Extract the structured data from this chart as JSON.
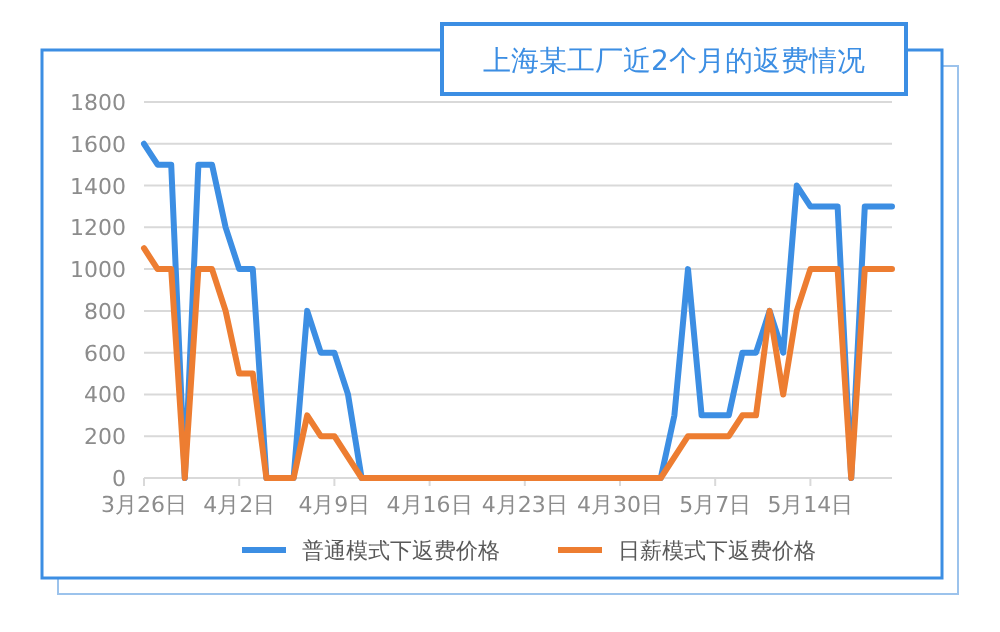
{
  "chart_data": {
    "type": "line",
    "title": "上海某工厂近2个月的返费情况",
    "x": [
      "--03-26",
      "--03-27",
      "--03-28",
      "--03-29",
      "--03-30",
      "--03-31",
      "--04-01",
      "--04-02",
      "--04-03",
      "--04-04",
      "--04-05",
      "--04-06",
      "--04-07",
      "--04-08",
      "--04-09",
      "--04-10",
      "--04-11",
      "--04-12",
      "--04-13",
      "--04-14",
      "--04-15",
      "--04-16",
      "--04-17",
      "--04-18",
      "--04-19",
      "--04-20",
      "--04-21",
      "--04-22",
      "--04-23",
      "--04-24",
      "--04-25",
      "--04-26",
      "--04-27",
      "--04-28",
      "--04-29",
      "--04-30",
      "--05-01",
      "--05-02",
      "--05-03",
      "--05-04",
      "--05-05",
      "--05-06",
      "--05-07",
      "--05-08",
      "--05-09",
      "--05-10",
      "--05-11",
      "--05-12",
      "--05-13",
      "--05-14",
      "--05-15",
      "--05-16",
      "--05-17",
      "--05-18",
      "--05-19",
      "--05-20"
    ],
    "series": [
      {
        "name": "普通模式下返费价格",
        "color": "#3c8ee3",
        "values": [
          1600,
          1500,
          1500,
          0,
          1500,
          1500,
          1200,
          1000,
          1000,
          0,
          0,
          0,
          800,
          600,
          600,
          400,
          0,
          0,
          0,
          0,
          0,
          0,
          0,
          0,
          0,
          0,
          0,
          0,
          0,
          0,
          0,
          0,
          0,
          0,
          0,
          0,
          0,
          0,
          0,
          300,
          1000,
          300,
          300,
          300,
          600,
          600,
          800,
          600,
          1400,
          1300,
          1300,
          1300,
          0,
          1300,
          1300,
          1300
        ]
      },
      {
        "name": "日薪模式下返费价格",
        "color": "#ed7d31",
        "values": [
          1100,
          1000,
          1000,
          0,
          1000,
          1000,
          800,
          500,
          500,
          0,
          0,
          0,
          300,
          200,
          200,
          100,
          0,
          0,
          0,
          0,
          0,
          0,
          0,
          0,
          0,
          0,
          0,
          0,
          0,
          0,
          0,
          0,
          0,
          0,
          0,
          0,
          0,
          0,
          0,
          100,
          200,
          200,
          200,
          200,
          300,
          300,
          800,
          400,
          800,
          1000,
          1000,
          1000,
          0,
          1000,
          1000,
          1000
        ]
      }
    ],
    "xlim": [
      "--03-26",
      "--05-20"
    ],
    "xticks": [
      {
        "value": "--03-26",
        "label": "3月26日"
      },
      {
        "value": "--04-02",
        "label": "4月2日"
      },
      {
        "value": "--04-09",
        "label": "4月9日"
      },
      {
        "value": "--04-16",
        "label": "4月16日"
      },
      {
        "value": "--04-23",
        "label": "4月23日"
      },
      {
        "value": "--04-30",
        "label": "4月30日"
      },
      {
        "value": "--05-07",
        "label": "5月7日"
      },
      {
        "value": "--05-14",
        "label": "5月14日"
      }
    ],
    "ylim": [
      0,
      1800
    ],
    "yticks": [
      0,
      200,
      400,
      600,
      800,
      1000,
      1200,
      1400,
      1600,
      1800
    ],
    "grid": "y",
    "legend": "bottom",
    "marker": "none",
    "line_style": "solid"
  }
}
